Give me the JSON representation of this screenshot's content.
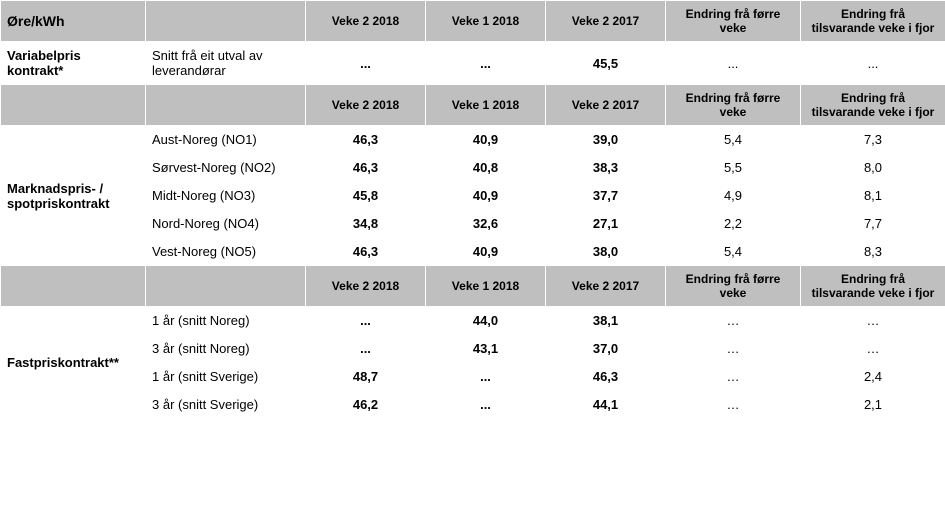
{
  "headers": {
    "unit": "Øre/kWh",
    "c2": "Veke 2 2018",
    "c3": "Veke 1 2018",
    "c4": "Veke 2 2017",
    "c5": "Endring frå førre veke",
    "c6": "Endring frå tilsvarande veke i fjor"
  },
  "section1": {
    "label": "Variabelpris kontrakt*",
    "sub": "Snitt frå eit utval av leverandørar",
    "v": [
      "...",
      "...",
      "45,5",
      "...",
      "..."
    ]
  },
  "section2": {
    "label": "Marknadspris- / spotpriskontrakt",
    "rows": [
      {
        "sub": "Aust-Noreg (NO1)",
        "v": [
          "46,3",
          "40,9",
          "39,0",
          "5,4",
          "7,3"
        ]
      },
      {
        "sub": "Sørvest-Noreg (NO2)",
        "v": [
          "46,3",
          "40,8",
          "38,3",
          "5,5",
          "8,0"
        ]
      },
      {
        "sub": "Midt-Noreg (NO3)",
        "v": [
          "45,8",
          "40,9",
          "37,7",
          "4,9",
          "8,1"
        ]
      },
      {
        "sub": "Nord-Noreg (NO4)",
        "v": [
          "34,8",
          "32,6",
          "27,1",
          "2,2",
          "7,7"
        ]
      },
      {
        "sub": "Vest-Noreg (NO5)",
        "v": [
          "46,3",
          "40,9",
          "38,0",
          "5,4",
          "8,3"
        ]
      }
    ]
  },
  "section3": {
    "label": "Fastpriskontrakt**",
    "rows": [
      {
        "sub": "1 år (snitt Noreg)",
        "v": [
          "...",
          "44,0",
          "38,1",
          "…",
          "…"
        ]
      },
      {
        "sub": "3 år (snitt Noreg)",
        "v": [
          "...",
          "43,1",
          "37,0",
          "…",
          "…"
        ]
      },
      {
        "sub": "1 år (snitt Sverige)",
        "v": [
          "48,7",
          "...",
          "46,3",
          "…",
          "2,4"
        ]
      },
      {
        "sub": "3 år (snitt Sverige)",
        "v": [
          "46,2",
          "...",
          "44,1",
          "…",
          "2,1"
        ]
      }
    ]
  }
}
